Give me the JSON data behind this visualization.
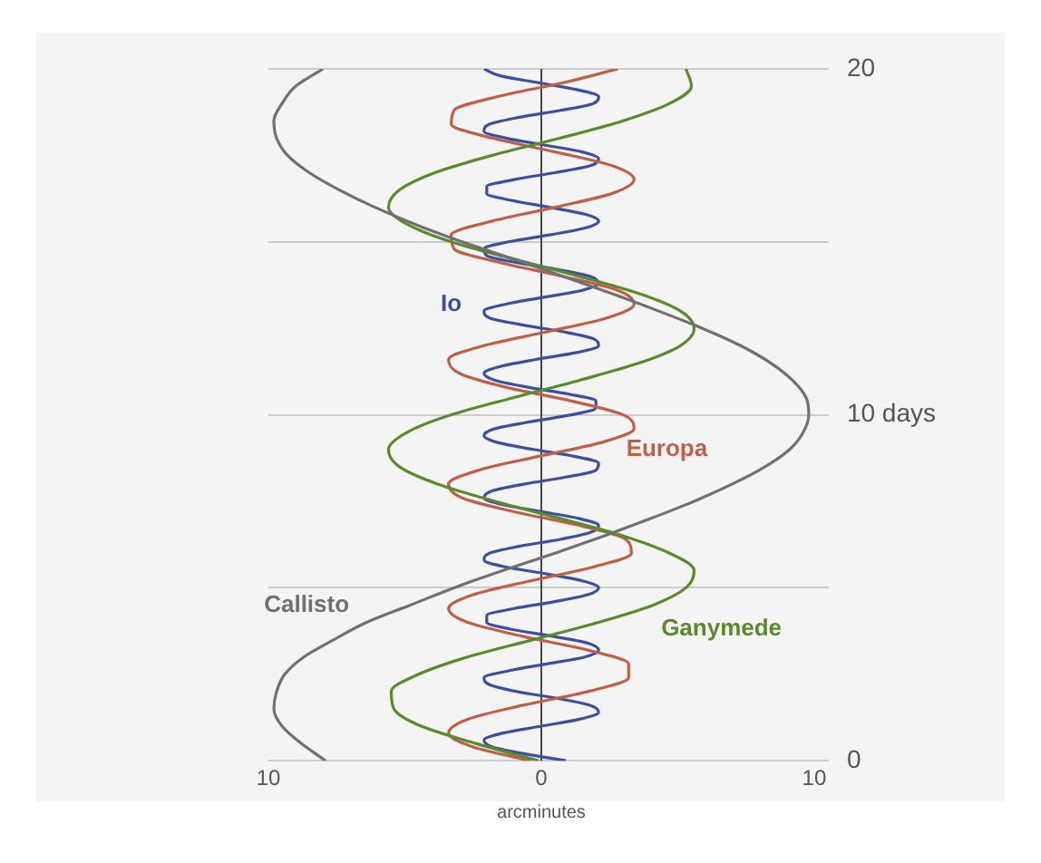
{
  "chart_data": {
    "type": "line",
    "xlabel": "arcminutes",
    "xlim": [
      -10,
      10
    ],
    "xticks": [
      {
        "value": -10,
        "label": "10"
      },
      0,
      10
    ],
    "ylim": [
      0,
      20
    ],
    "yticks": [
      0,
      {
        "value": 5,
        "label": null
      },
      {
        "value": 10,
        "label": "10 days"
      },
      {
        "value": 15,
        "label": null
      },
      20
    ],
    "grid": "y",
    "marker": "none",
    "line_style": "solid",
    "ref_lines": [
      {
        "axis": "x",
        "value": 0,
        "color": "#444444"
      }
    ],
    "series": [
      {
        "name": "Io",
        "color": "#3c4f9e",
        "x": [
          0.9,
          -0.6,
          -1.8,
          -2.1,
          -1.4,
          0.0,
          1.4,
          2.1,
          1.8,
          0.6,
          -0.9,
          -1.9,
          -2.1,
          -1.2,
          0.2,
          1.6,
          2.1,
          1.7,
          0.4,
          -1.1,
          -2.0,
          -2.0,
          -1.0,
          0.5,
          1.7,
          2.1,
          1.5,
          0.2,
          -1.3,
          -2.1,
          -1.9,
          -0.8,
          0.7,
          1.8,
          2.1,
          1.4,
          0.0,
          -1.4,
          -2.1,
          -1.8,
          -0.6,
          0.9,
          2.0,
          2.1,
          1.2,
          -0.3,
          -1.6,
          -2.1,
          -1.7,
          -0.4,
          1.1,
          2.0,
          2.0,
          1.0,
          -0.5,
          -1.7,
          -2.1,
          -1.5,
          -0.2,
          1.3,
          2.1,
          1.9,
          0.8,
          -0.7,
          -1.9,
          -2.1,
          -1.3,
          0.1,
          1.5,
          2.1,
          1.8,
          0.6,
          -0.9,
          -2.0,
          -2.1,
          -1.2,
          0.3,
          1.6,
          2.1,
          1.6,
          0.3,
          -1.1,
          -2.0,
          -2.0,
          -1.0,
          0.5,
          1.8,
          2.1,
          1.5,
          0.1,
          -1.3,
          -2.1,
          -1.9,
          -0.8,
          0.7,
          1.9,
          2.1,
          1.3,
          -0.1,
          -1.5,
          -2.1
        ],
        "values": [
          0,
          0.2,
          0.4,
          0.6,
          0.8,
          1,
          1.2,
          1.4,
          1.6,
          1.8,
          2,
          2.2,
          2.4,
          2.6,
          2.8,
          3,
          3.2,
          3.4,
          3.6,
          3.8,
          4,
          4.2,
          4.4,
          4.6,
          4.8,
          5,
          5.2,
          5.4,
          5.6,
          5.8,
          6,
          6.2,
          6.4,
          6.6,
          6.8,
          7,
          7.2,
          7.4,
          7.6,
          7.8,
          8,
          8.2,
          8.4,
          8.6,
          8.8,
          9,
          9.2,
          9.4,
          9.6,
          9.8,
          10,
          10.2,
          10.4,
          10.6,
          10.8,
          11,
          11.2,
          11.4,
          11.6,
          11.8,
          12,
          12.2,
          12.4,
          12.6,
          12.8,
          13,
          13.2,
          13.4,
          13.6,
          13.8,
          14,
          14.2,
          14.4,
          14.6,
          14.8,
          15,
          15.2,
          15.4,
          15.6,
          15.8,
          16,
          16.2,
          16.4,
          16.6,
          16.8,
          17,
          17.2,
          17.4,
          17.6,
          17.8,
          18,
          18.2,
          18.4,
          18.6,
          18.8,
          19,
          19.2,
          19.4,
          19.6,
          19.8,
          20
        ]
      },
      {
        "name": "Europa",
        "color": "#bf5f48",
        "x": [
          -0.4,
          -2.5,
          -3.4,
          -2.7,
          -0.7,
          1.7,
          3.2,
          3.2,
          1.7,
          -0.7,
          -2.7,
          -3.4,
          -2.5,
          -0.4,
          1.9,
          3.3,
          3.1,
          1.4,
          -1.0,
          -2.9,
          -3.4,
          -2.3,
          -0.1,
          2.2,
          3.4,
          3.0,
          1.1,
          -1.3,
          -3.0,
          -3.4,
          -2.1,
          0.2,
          2.4,
          3.4,
          2.8,
          0.8,
          -1.5,
          -3.2,
          -3.3,
          -1.8,
          0.5,
          2.6,
          3.4,
          2.6,
          0.5,
          -1.8,
          -3.3,
          -3.2,
          -1.6,
          0.8,
          2.8
        ],
        "values": [
          0,
          0.4,
          0.8,
          1.2,
          1.6,
          2,
          2.4,
          2.8,
          3.2,
          3.6,
          4,
          4.4,
          4.8,
          5.2,
          5.6,
          6,
          6.4,
          6.8,
          7.2,
          7.6,
          8,
          8.4,
          8.8,
          9.2,
          9.6,
          10,
          10.4,
          10.8,
          11.2,
          11.6,
          12,
          12.4,
          12.8,
          13.2,
          13.6,
          14,
          14.4,
          14.8,
          15.2,
          15.6,
          16,
          16.4,
          16.8,
          17.2,
          17.6,
          18,
          18.4,
          18.8,
          19.2,
          19.6,
          20
        ]
      },
      {
        "name": "Ganymede",
        "color": "#5a8a2e",
        "x": [
          -0.1,
          -2.4,
          -4.4,
          -5.4,
          -5.5,
          -4.5,
          -2.7,
          -0.3,
          2.1,
          4.1,
          5.3,
          5.6,
          4.7,
          3.0,
          0.7,
          -1.7,
          -3.8,
          -5.2,
          -5.6,
          -4.9,
          -3.3,
          -1.0,
          1.4,
          3.6,
          5.1,
          5.6,
          5.1,
          3.6,
          1.4,
          -1.0,
          -3.3,
          -4.9,
          -5.6,
          -5.2,
          -3.9,
          -1.8,
          0.7,
          3.0,
          4.7,
          5.5,
          5.3
        ],
        "values": [
          0,
          0.5,
          1,
          1.5,
          2,
          2.5,
          3,
          3.5,
          4,
          4.5,
          5,
          5.5,
          6,
          6.5,
          7,
          7.5,
          8,
          8.5,
          9,
          9.5,
          10,
          10.5,
          11,
          11.5,
          12,
          12.5,
          13,
          13.5,
          14,
          14.5,
          15,
          15.5,
          16,
          16.5,
          17,
          17.5,
          18,
          18.5,
          19,
          19.5,
          20
        ]
      },
      {
        "name": "Callisto",
        "color": "#707070",
        "x": [
          -7.9,
          -8.8,
          -9.5,
          -9.8,
          -9.7,
          -9.4,
          -8.7,
          -7.6,
          -6.4,
          -4.8,
          -3.2,
          -1.4,
          0.5,
          2.3,
          4.0,
          5.6,
          7.0,
          8.2,
          9.1,
          9.6,
          9.8,
          9.7,
          9.2,
          8.4,
          7.3,
          5.9,
          4.3,
          2.6,
          0.8,
          -1.0,
          -2.9,
          -4.6,
          -6.1,
          -7.4,
          -8.5,
          -9.3,
          -9.7,
          -9.8,
          -9.5,
          -9.0,
          -8.0
        ],
        "values": [
          0,
          0.5,
          1,
          1.5,
          2,
          2.5,
          3,
          3.5,
          4,
          4.5,
          5,
          5.5,
          6,
          6.5,
          7,
          7.5,
          8,
          8.5,
          9,
          9.5,
          10,
          10.5,
          11,
          11.5,
          12,
          12.5,
          13,
          13.5,
          14,
          14.5,
          15,
          15.5,
          16,
          16.5,
          17,
          17.5,
          18,
          18.5,
          19,
          19.5,
          20
        ]
      }
    ]
  }
}
